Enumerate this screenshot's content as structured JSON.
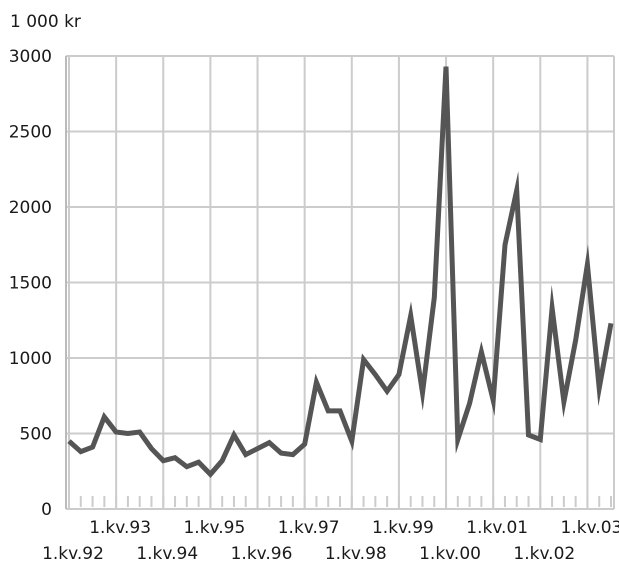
{
  "chart_data": {
    "type": "line",
    "unit_label": "1 000 kr",
    "ylim": [
      0,
      3000
    ],
    "y_ticks": [
      0,
      500,
      1000,
      1500,
      2000,
      2500,
      3000
    ],
    "grid": true,
    "x_tick_labels": [
      {
        "label": "1.kv.92",
        "quarter": 0,
        "row": "lower"
      },
      {
        "label": "1.kv.93",
        "quarter": 4,
        "row": "upper"
      },
      {
        "label": "1.kv.94",
        "quarter": 8,
        "row": "lower"
      },
      {
        "label": "1.kv.95",
        "quarter": 12,
        "row": "upper"
      },
      {
        "label": "1.kv.96",
        "quarter": 16,
        "row": "lower"
      },
      {
        "label": "1.kv.97",
        "quarter": 20,
        "row": "upper"
      },
      {
        "label": "1.kv.98",
        "quarter": 24,
        "row": "lower"
      },
      {
        "label": "1.kv.99",
        "quarter": 28,
        "row": "upper"
      },
      {
        "label": "1.kv.00",
        "quarter": 32,
        "row": "lower"
      },
      {
        "label": "1.kv.01",
        "quarter": 36,
        "row": "upper"
      },
      {
        "label": "1.kv.02",
        "quarter": 40,
        "row": "lower"
      },
      {
        "label": "1.kv.03",
        "quarter": 44,
        "row": "upper"
      }
    ],
    "series": [
      {
        "color": "#555555",
        "values": [
          450,
          380,
          410,
          610,
          510,
          500,
          510,
          400,
          320,
          340,
          280,
          310,
          230,
          320,
          490,
          360,
          400,
          440,
          370,
          360,
          430,
          840,
          650,
          650,
          450,
          990,
          890,
          780,
          890,
          1280,
          770,
          1400,
          2930,
          460,
          700,
          1040,
          720,
          1750,
          2110,
          490,
          460,
          1330,
          710,
          1120,
          1620,
          800,
          1230
        ]
      }
    ]
  }
}
